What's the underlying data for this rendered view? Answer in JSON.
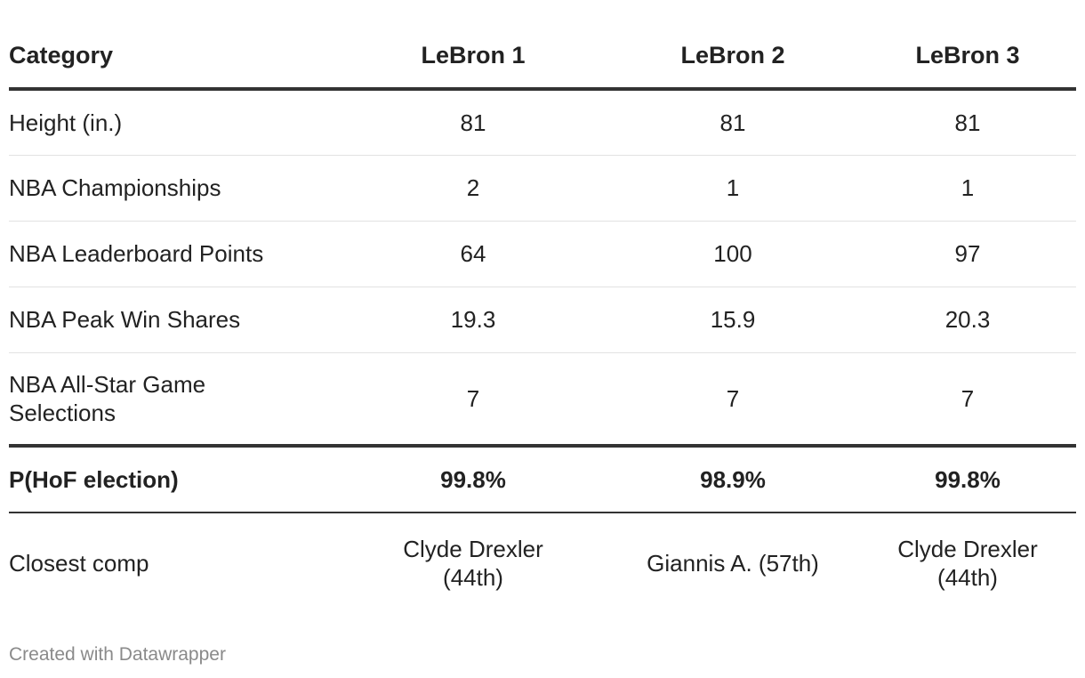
{
  "chart_data": {
    "type": "table",
    "columns": [
      "Category",
      "LeBron 1",
      "LeBron 2",
      "LeBron 3"
    ],
    "rows": [
      {
        "category": "Height (in.)",
        "values": [
          "81",
          "81",
          "81"
        ]
      },
      {
        "category": "NBA Championships",
        "values": [
          "2",
          "1",
          "1"
        ]
      },
      {
        "category": "NBA Leaderboard Points",
        "values": [
          "64",
          "100",
          "97"
        ]
      },
      {
        "category": "NBA Peak Win Shares",
        "values": [
          "19.3",
          "15.9",
          "20.3"
        ]
      },
      {
        "category": "NBA All-Star Game Selections",
        "values": [
          "7",
          "7",
          "7"
        ]
      },
      {
        "category": "P(HoF election)",
        "values": [
          "99.8%",
          "98.9%",
          "99.8%"
        ]
      },
      {
        "category": "Closest comp",
        "values": [
          "Clyde Drexler (44th)",
          "Giannis A. (57th)",
          "Clyde Drexler (44th)"
        ]
      }
    ]
  },
  "footer": {
    "credit": "Created with Datawrapper"
  }
}
